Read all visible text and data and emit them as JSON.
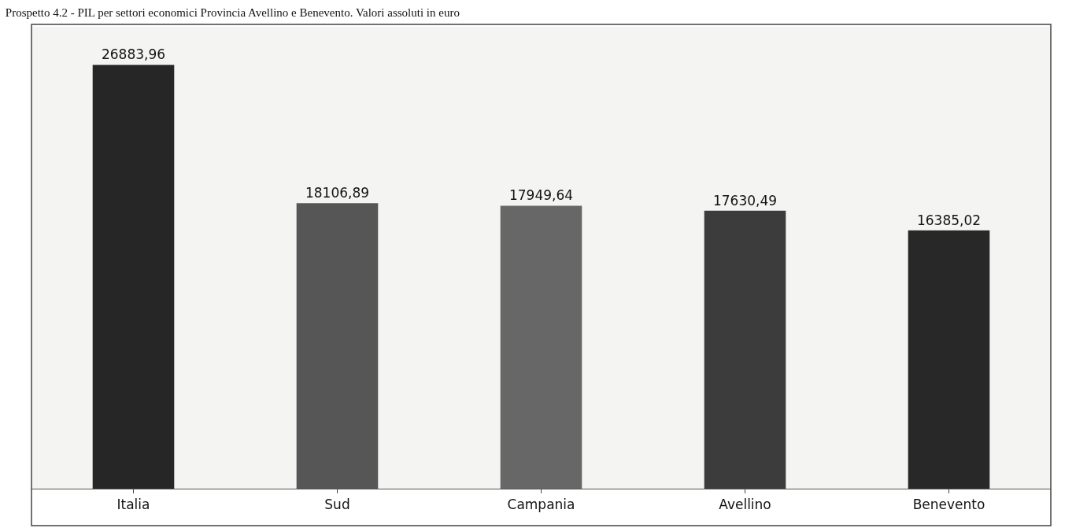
{
  "chart_data": {
    "type": "bar",
    "title": "Prospetto 4.2 - PIL per settori economici Provincia Avellino e Benevento. Valori assoluti in euro",
    "categories": [
      "Italia",
      "Sud",
      "Campania",
      "Avellino",
      "Benevento"
    ],
    "values": [
      26883.96,
      18106.89,
      17949.64,
      17630.49,
      16385.02
    ],
    "value_labels": [
      "26883,96",
      "18106,89",
      "17949,64",
      "17630,49",
      "16385,02"
    ],
    "colors": [
      "#262626",
      "#565656",
      "#676767",
      "#3c3c3c",
      "#282828"
    ],
    "grid": false,
    "legend": false
  }
}
